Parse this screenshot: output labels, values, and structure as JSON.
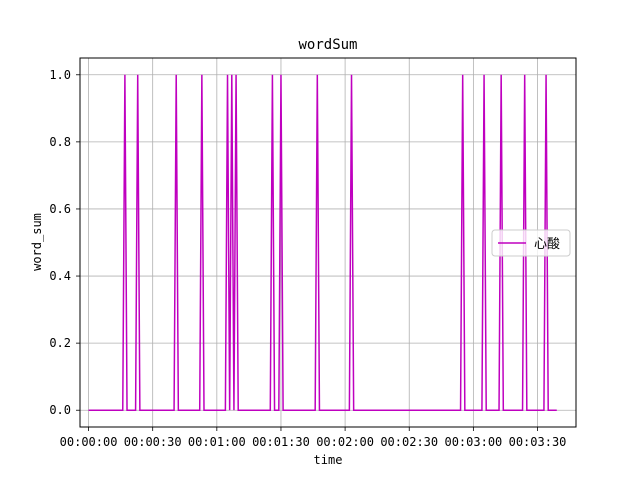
{
  "chart_data": {
    "type": "line",
    "title": "wordSum",
    "xlabel": "time",
    "ylabel": "word_sum",
    "xlim": [
      -4,
      228
    ],
    "ylim": [
      -0.05,
      1.05
    ],
    "x_ticks": [
      0,
      30,
      60,
      90,
      120,
      150,
      180,
      210
    ],
    "x_tick_labels": [
      "00:00:00",
      "00:00:30",
      "00:01:00",
      "00:01:30",
      "00:02:00",
      "00:02:30",
      "00:03:00",
      "00:03:30"
    ],
    "y_ticks": [
      0.0,
      0.2,
      0.4,
      0.6,
      0.8,
      1.0
    ],
    "y_tick_labels": [
      "0.0",
      "0.2",
      "0.4",
      "0.6",
      "0.8",
      "1.0"
    ],
    "grid": true,
    "legend_position": "center-right",
    "series": [
      {
        "name": "心酸",
        "color": "#bf00bf",
        "x": [
          0,
          16,
          17,
          18,
          22,
          23,
          24,
          40,
          41,
          42,
          52,
          53,
          54,
          64,
          65,
          66,
          67,
          68,
          69,
          70,
          85,
          86,
          87,
          89,
          90,
          91,
          106,
          107,
          108,
          122,
          123,
          124,
          174,
          175,
          176,
          184,
          185,
          186,
          192,
          193,
          194,
          203,
          204,
          205,
          213,
          214,
          215,
          219
        ],
        "y": [
          0,
          0,
          1,
          0,
          0,
          1,
          0,
          0,
          1,
          0,
          0,
          1,
          0,
          0,
          1,
          0,
          1,
          0,
          1,
          0,
          0,
          1,
          0,
          0,
          1,
          0,
          0,
          1,
          0,
          0,
          1,
          0,
          0,
          1,
          0,
          0,
          1,
          0,
          0,
          1,
          0,
          0,
          1,
          0,
          0,
          1,
          0,
          0
        ]
      }
    ]
  }
}
